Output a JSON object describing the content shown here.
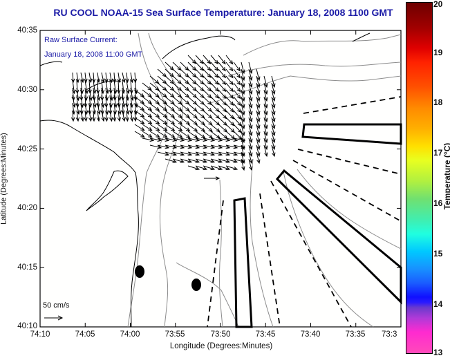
{
  "title": "RU COOL  NOAA-15  Sea Surface Temperature:  January 18, 2008 1100 GMT",
  "annotation": {
    "line1": "Raw Surface Current:",
    "line2": "January 18, 2008 11:00 GMT"
  },
  "scale_arrow": {
    "label": "50 cm/s",
    "speed_cm_s": 50
  },
  "chart_data": {
    "type": "map",
    "title": "RU COOL  NOAA-15  Sea Surface Temperature:  January 18, 2008 1100 GMT",
    "xlabel": "Longitude (Degrees:Minutes)",
    "ylabel": "Latitude (Degrees:Minutes)",
    "x_ticks": [
      "74:10",
      "74:05",
      "74:00",
      "73:55",
      "73:50",
      "73:45",
      "73:40",
      "73:35",
      "73:3"
    ],
    "y_ticks": [
      "40:35",
      "40:30",
      "40:25",
      "40:20",
      "40:15",
      "40:10"
    ],
    "xlim_minutes_west": [
      74.1667,
      73.5
    ],
    "ylim_degrees_north": [
      40.1667,
      40.5833
    ],
    "colorbar": {
      "label": "Temperature (°C)",
      "ticks": [
        "20",
        "19",
        "18",
        "17",
        "16",
        "15",
        "14",
        "13"
      ],
      "range": [
        13,
        20
      ]
    },
    "layers": [
      "coastline",
      "bathymetry contours",
      "shipping lanes",
      "surface current vectors"
    ]
  }
}
